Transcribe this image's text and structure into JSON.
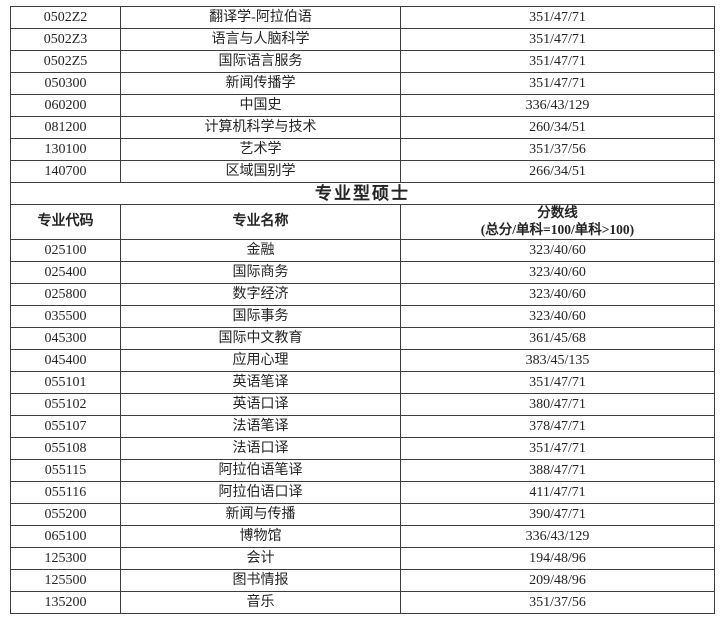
{
  "page": {
    "background": "#ffffff",
    "border_color": "#3d3d3d",
    "text_color": "#242424"
  },
  "section_heading": "专业型硕士",
  "top_table": {
    "rows": [
      {
        "code": "0502Z2",
        "name": "翻译学-阿拉伯语",
        "score": "351/47/71"
      },
      {
        "code": "0502Z3",
        "name": "语言与人脑科学",
        "score": "351/47/71"
      },
      {
        "code": "0502Z5",
        "name": "国际语言服务",
        "score": "351/47/71"
      },
      {
        "code": "050300",
        "name": "新闻传播学",
        "score": "351/47/71"
      },
      {
        "code": "060200",
        "name": "中国史",
        "score": "336/43/129"
      },
      {
        "code": "081200",
        "name": "计算机科学与技术",
        "score": "260/34/51"
      },
      {
        "code": "130100",
        "name": "艺术学",
        "score": "351/37/56"
      },
      {
        "code": "140700",
        "name": "区域国别学",
        "score": "266/34/51"
      }
    ]
  },
  "bottom_table": {
    "headers": {
      "code": "专业代码",
      "name": "专业名称",
      "score_line1": "分数线",
      "score_line2": "(总分/单科=100/单科>100)"
    },
    "rows": [
      {
        "code": "025100",
        "name": "金融",
        "score": "323/40/60"
      },
      {
        "code": "025400",
        "name": "国际商务",
        "score": "323/40/60"
      },
      {
        "code": "025800",
        "name": "数字经济",
        "score": "323/40/60"
      },
      {
        "code": "035500",
        "name": "国际事务",
        "score": "323/40/60"
      },
      {
        "code": "045300",
        "name": "国际中文教育",
        "score": "361/45/68"
      },
      {
        "code": "045400",
        "name": "应用心理",
        "score": "383/45/135"
      },
      {
        "code": "055101",
        "name": "英语笔译",
        "score": "351/47/71"
      },
      {
        "code": "055102",
        "name": "英语口译",
        "score": "380/47/71"
      },
      {
        "code": "055107",
        "name": "法语笔译",
        "score": "378/47/71"
      },
      {
        "code": "055108",
        "name": "法语口译",
        "score": "351/47/71"
      },
      {
        "code": "055115",
        "name": "阿拉伯语笔译",
        "score": "388/47/71"
      },
      {
        "code": "055116",
        "name": "阿拉伯语口译",
        "score": "411/47/71"
      },
      {
        "code": "055200",
        "name": "新闻与传播",
        "score": "390/47/71"
      },
      {
        "code": "065100",
        "name": "博物馆",
        "score": "336/43/129"
      },
      {
        "code": "125300",
        "name": "会计",
        "score": "194/48/96"
      },
      {
        "code": "125500",
        "name": "图书情报",
        "score": "209/48/96"
      },
      {
        "code": "135200",
        "name": "音乐",
        "score": "351/37/56"
      }
    ]
  }
}
